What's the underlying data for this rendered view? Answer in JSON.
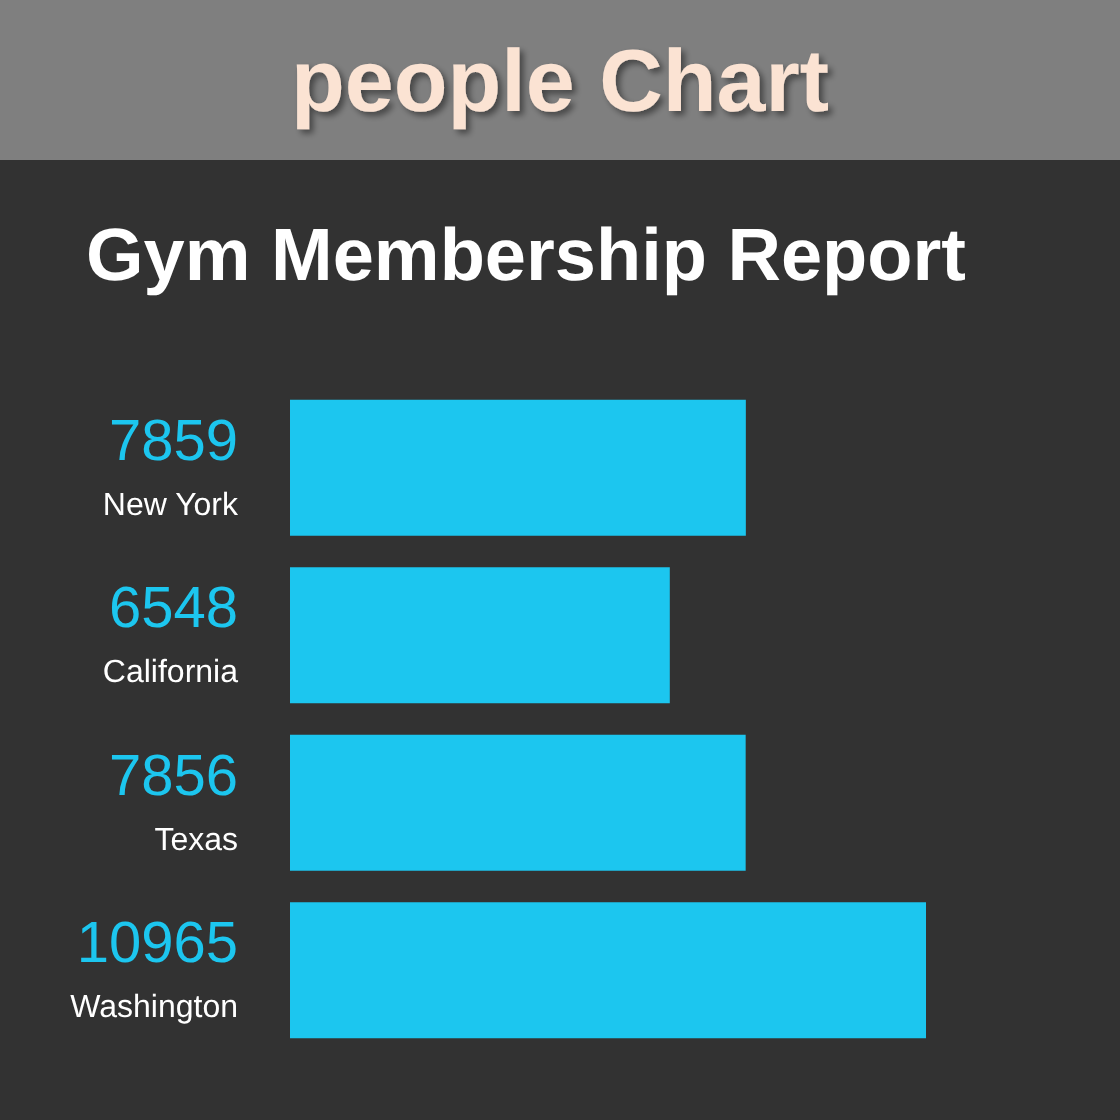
{
  "chart_data": {
    "type": "bar",
    "title": "Gym Membership Report",
    "annotations": [
      "people Chart"
    ],
    "orientation": "horizontal",
    "categories": [
      "New York",
      "California",
      "Texas",
      "Washington"
    ],
    "values": [
      7859,
      6548,
      7856,
      10965
    ],
    "color": "#1cc6ef",
    "data_labels": true,
    "tick_labels": "y"
  }
}
